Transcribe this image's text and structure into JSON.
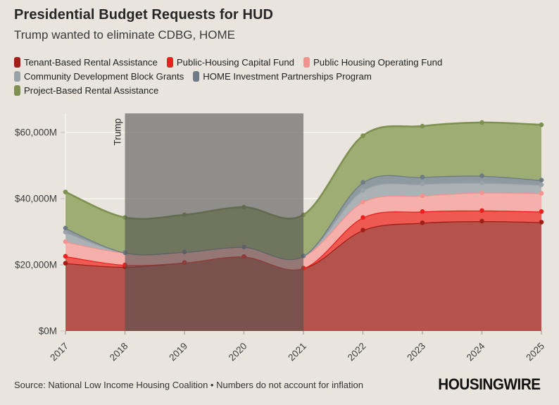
{
  "header": {
    "title": "Presidential Budget Requests for HUD",
    "subtitle": "Trump wanted to eliminate CDBG, HOME"
  },
  "chart_data": {
    "type": "area",
    "stacked": true,
    "title": "Presidential Budget Requests for HUD",
    "subtitle": "Trump wanted to eliminate CDBG, HOME",
    "x": [
      "2017",
      "2018",
      "2019",
      "2020",
      "2021",
      "2022",
      "2023",
      "2024",
      "2025"
    ],
    "y_unit": "$M",
    "yticks": [
      0,
      20000,
      40000,
      60000
    ],
    "ytick_labels": [
      "$0M",
      "$20,000M",
      "$40,000M",
      "$60,000M"
    ],
    "ylim": [
      0,
      65700
    ],
    "grid": true,
    "legend_position": "top-left",
    "series": [
      {
        "name": "Tenant-Based Rental Assistance",
        "color": "#a02019",
        "fill": "#b4534b",
        "values": [
          20500,
          19400,
          20700,
          22500,
          19000,
          30500,
          32700,
          33200,
          32900
        ]
      },
      {
        "name": "Public-Housing Capital Fund",
        "color": "#e8231f",
        "fill": "#ee5a52",
        "values": [
          2100,
          600,
          0,
          0,
          0,
          3800,
          3400,
          3200,
          3200
        ]
      },
      {
        "name": "Public Housing Operating Fund",
        "color": "#f2938f",
        "fill": "#f6b0ab",
        "values": [
          4400,
          3700,
          3200,
          2900,
          3700,
          4700,
          4800,
          5400,
          5500
        ]
      },
      {
        "name": "Community Development Block Grants",
        "color": "#99a2a8",
        "fill": "#abb2b6",
        "values": [
          2900,
          0,
          0,
          0,
          0,
          3500,
          3500,
          3000,
          2600
        ]
      },
      {
        "name": "HOME Investment Partnerships Program",
        "color": "#6e7b85",
        "fill": "#8e99a0",
        "values": [
          1200,
          0,
          0,
          0,
          0,
          2400,
          2100,
          2100,
          1400
        ]
      },
      {
        "name": "Project-Based Rental Assistance",
        "color": "#7e9150",
        "fill": "#9ead74",
        "values": [
          10900,
          10600,
          11200,
          12000,
          12400,
          14100,
          15400,
          16100,
          16700
        ]
      }
    ],
    "annotation": {
      "label": "Trump",
      "x_from": "2018",
      "x_to": "2021",
      "overlay_color": "rgba(80,80,80,0.58)"
    }
  },
  "legend_rows": [
    [
      0,
      1,
      2
    ],
    [
      3,
      4
    ],
    [
      5
    ]
  ],
  "footer": {
    "source": "Source: National Low Income Housing Coalition • Numbers do not account for inflation",
    "brand": "HOUSINGWIRE"
  }
}
